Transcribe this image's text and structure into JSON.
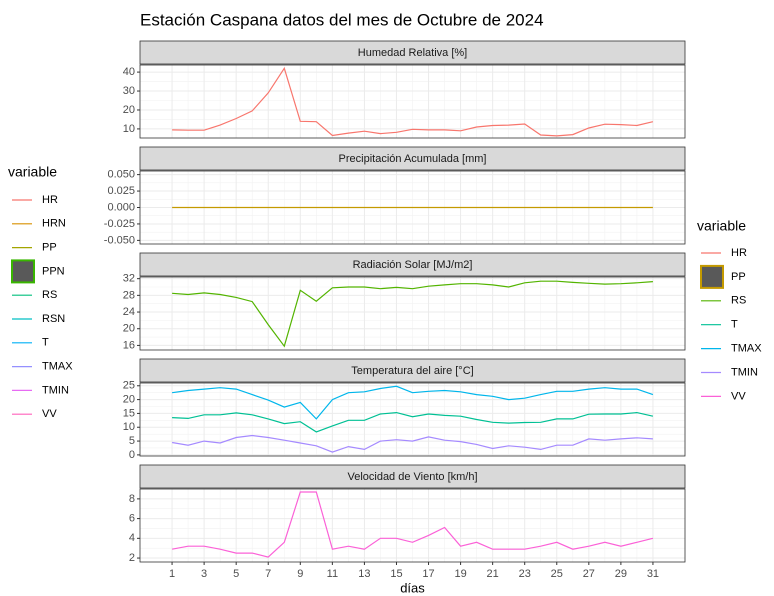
{
  "title": "Estación Caspana datos del mes de Octubre de 2024",
  "chart_data": [
    {
      "type": "line",
      "title": "Humedad Relativa [%]",
      "x": [
        1,
        2,
        3,
        4,
        5,
        6,
        7,
        8,
        9,
        10,
        11,
        12,
        13,
        14,
        15,
        16,
        17,
        18,
        19,
        20,
        21,
        22,
        23,
        24,
        25,
        26,
        27,
        28,
        29,
        30,
        31
      ],
      "series": [
        {
          "name": "HR",
          "color": "#F8766D",
          "values": [
            9.5,
            9.3,
            9.3,
            12,
            15.5,
            19.5,
            29,
            42,
            14,
            13.8,
            6.5,
            7.8,
            8.8,
            7.5,
            8.2,
            9.8,
            9.5,
            9.5,
            9,
            11,
            11.8,
            12,
            12.6,
            6.8,
            6.3,
            7,
            10.5,
            12.5,
            12.3,
            11.8,
            13.8
          ]
        }
      ],
      "xlim": [
        -1,
        33
      ],
      "xticks": [
        1,
        3,
        5,
        7,
        9,
        11,
        13,
        15,
        17,
        19,
        21,
        23,
        25,
        27,
        29,
        31
      ],
      "ylim": [
        5.2,
        43.75
      ],
      "yticks": [
        10,
        20,
        30,
        40
      ],
      "grid": true
    },
    {
      "type": "line",
      "title": "Precipitación Acumulada [mm]",
      "x": [
        1,
        2,
        3,
        4,
        5,
        6,
        7,
        8,
        9,
        10,
        11,
        12,
        13,
        14,
        15,
        16,
        17,
        18,
        19,
        20,
        21,
        22,
        23,
        24,
        25,
        26,
        27,
        28,
        29,
        30,
        31
      ],
      "series": [
        {
          "name": "PP",
          "color": "#C49A00",
          "values": [
            0,
            0,
            0,
            0,
            0,
            0,
            0,
            0,
            0,
            0,
            0,
            0,
            0,
            0,
            0,
            0,
            0,
            0,
            0,
            0,
            0,
            0,
            0,
            0,
            0,
            0,
            0,
            0,
            0,
            0,
            0
          ]
        }
      ],
      "xlim": [
        -1,
        33
      ],
      "xticks": [
        1,
        3,
        5,
        7,
        9,
        11,
        13,
        15,
        17,
        19,
        21,
        23,
        25,
        27,
        29,
        31
      ],
      "ylim": [
        -0.0555,
        0.0555
      ],
      "yticks": [
        {
          "value": 0.05,
          "label": "0.050"
        },
        {
          "value": 0.025,
          "label": "0.025"
        },
        {
          "value": 0,
          "label": "0.000"
        },
        {
          "value": -0.025,
          "label": "-0.025"
        },
        {
          "value": -0.05,
          "label": "-0.050"
        }
      ],
      "grid": true
    },
    {
      "type": "line",
      "title": "Radiación Solar [MJ/m2]",
      "x": [
        1,
        2,
        3,
        4,
        5,
        6,
        7,
        8,
        9,
        10,
        11,
        12,
        13,
        14,
        15,
        16,
        17,
        18,
        19,
        20,
        21,
        22,
        23,
        24,
        25,
        26,
        27,
        28,
        29,
        30,
        31
      ],
      "series": [
        {
          "name": "RS",
          "color": "#53B400",
          "values": [
            28.5,
            28.2,
            28.6,
            28.2,
            27.5,
            26.5,
            21,
            15.8,
            29.2,
            26.6,
            29.8,
            30,
            30,
            29.6,
            29.9,
            29.6,
            30.2,
            30.5,
            30.8,
            30.8,
            30.5,
            30,
            31,
            31.4,
            31.4,
            31.1,
            30.9,
            30.7,
            30.8,
            31,
            31.3
          ]
        }
      ],
      "xlim": [
        -1,
        33
      ],
      "xticks": [
        1,
        3,
        5,
        7,
        9,
        11,
        13,
        15,
        17,
        19,
        21,
        23,
        25,
        27,
        29,
        31
      ],
      "ylim": [
        14.9,
        32.4
      ],
      "yticks": [
        16,
        20,
        24,
        28,
        32
      ],
      "grid": true
    },
    {
      "type": "line",
      "title": "Temperatura del aire [°C]",
      "x": [
        1,
        2,
        3,
        4,
        5,
        6,
        7,
        8,
        9,
        10,
        11,
        12,
        13,
        14,
        15,
        16,
        17,
        18,
        19,
        20,
        21,
        22,
        23,
        24,
        25,
        26,
        27,
        28,
        29,
        30,
        31
      ],
      "series": [
        {
          "name": "T",
          "color": "#00C094",
          "values": [
            13.5,
            13.2,
            14.5,
            14.5,
            15.2,
            14.5,
            13,
            11.3,
            12,
            8.3,
            10.5,
            12.5,
            12.5,
            14.8,
            15.3,
            13.8,
            14.8,
            14.3,
            14,
            12.8,
            11.8,
            11.5,
            11.7,
            11.8,
            13,
            13,
            14.7,
            14.8,
            14.8,
            15.3,
            14
          ]
        },
        {
          "name": "TMAX",
          "color": "#00B6EB",
          "values": [
            22.5,
            23.3,
            23.8,
            24.3,
            23.8,
            21.8,
            19.8,
            17.3,
            19,
            13,
            20,
            22.5,
            22.8,
            24,
            24.8,
            22.5,
            23,
            23.3,
            22.8,
            21.8,
            21.2,
            20,
            20.5,
            21.8,
            23,
            23,
            23.8,
            24.3,
            23.8,
            23.8,
            21.8
          ]
        },
        {
          "name": "TMIN",
          "color": "#A58AFF",
          "values": [
            4.5,
            3.5,
            5,
            4.3,
            6.3,
            7,
            6.3,
            5.3,
            4.3,
            3.3,
            1,
            3,
            2,
            5,
            5.5,
            5,
            6.5,
            5.3,
            4.8,
            3.8,
            2.3,
            3.3,
            2.8,
            2,
            3.5,
            3.5,
            5.8,
            5.3,
            5.8,
            6.2,
            5.8
          ]
        }
      ],
      "xlim": [
        -1,
        33
      ],
      "xticks": [
        1,
        3,
        5,
        7,
        9,
        11,
        13,
        15,
        17,
        19,
        21,
        23,
        25,
        27,
        29,
        31
      ],
      "ylim": [
        -0.4,
        26
      ],
      "yticks": [
        0,
        5,
        10,
        15,
        20,
        25
      ],
      "grid": true
    },
    {
      "type": "line",
      "title": "Velocidad de Viento [km/h]",
      "x_label": "días",
      "x": [
        1,
        2,
        3,
        4,
        5,
        6,
        7,
        8,
        9,
        10,
        11,
        12,
        13,
        14,
        15,
        16,
        17,
        18,
        19,
        20,
        21,
        22,
        23,
        24,
        25,
        26,
        27,
        28,
        29,
        30,
        31
      ],
      "series": [
        {
          "name": "VV",
          "color": "#FB61D7",
          "values": [
            2.9,
            3.2,
            3.2,
            2.9,
            2.5,
            2.5,
            2.1,
            3.6,
            8.7,
            8.7,
            2.9,
            3.2,
            2.9,
            4,
            4,
            3.6,
            4.3,
            5.1,
            3.2,
            3.6,
            2.9,
            2.9,
            2.9,
            3.2,
            3.6,
            2.9,
            3.2,
            3.6,
            3.2,
            3.6,
            4
          ]
        }
      ],
      "xlim": [
        -1,
        33
      ],
      "xticks": [
        1,
        3,
        5,
        7,
        9,
        11,
        13,
        15,
        17,
        19,
        21,
        23,
        25,
        27,
        29,
        31
      ],
      "ylim": [
        1.6,
        9.0
      ],
      "yticks": [
        2,
        4,
        6,
        8
      ],
      "grid": true
    }
  ],
  "legends": [
    {
      "title": "variable",
      "items": [
        {
          "name": "HR",
          "color": "#F8766D"
        },
        {
          "name": "HRN",
          "color": "#D89000"
        },
        {
          "name": "PP",
          "color": "#A3A500"
        },
        {
          "name": "PPN",
          "color": "#39B600",
          "fill": "#595959"
        },
        {
          "name": "RS",
          "color": "#00BF7D"
        },
        {
          "name": "RSN",
          "color": "#00BFC4"
        },
        {
          "name": "T",
          "color": "#00B0F6"
        },
        {
          "name": "TMAX",
          "color": "#9590FF"
        },
        {
          "name": "TMIN",
          "color": "#E76BF3"
        },
        {
          "name": "VV",
          "color": "#FF62BC"
        }
      ]
    },
    {
      "title": "variable",
      "items": [
        {
          "name": "HR",
          "color": "#F8766D"
        },
        {
          "name": "PP",
          "color": "#C49A00",
          "fill": "#595959"
        },
        {
          "name": "RS",
          "color": "#53B400"
        },
        {
          "name": "T",
          "color": "#00C094"
        },
        {
          "name": "TMAX",
          "color": "#00B6EB"
        },
        {
          "name": "TMIN",
          "color": "#A58AFF"
        },
        {
          "name": "VV",
          "color": "#FB61D7"
        }
      ]
    }
  ]
}
